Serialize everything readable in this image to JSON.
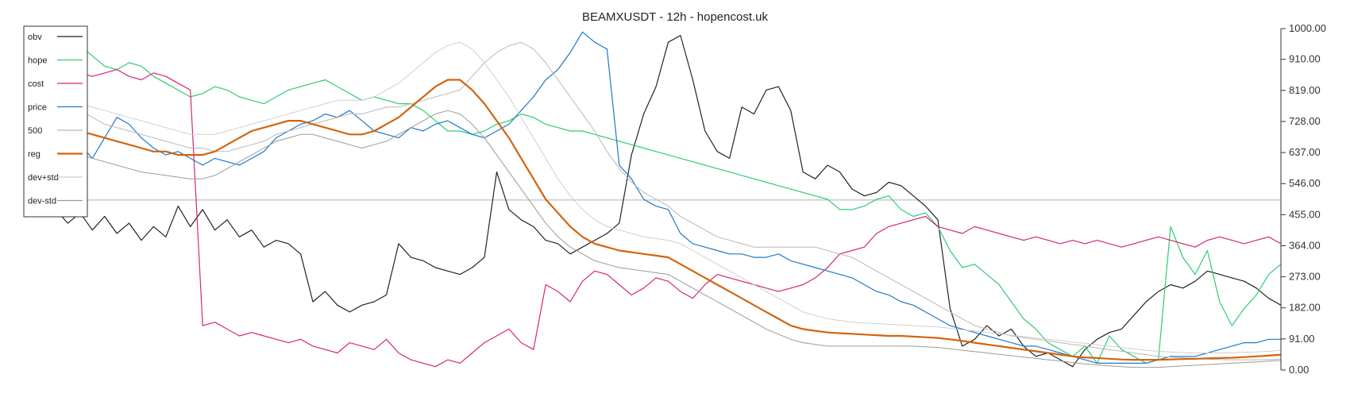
{
  "chart_data": {
    "type": "line",
    "title": "BEAMXUSDT - 12h - hopencost.uk",
    "xlabel": "",
    "ylabel": "",
    "ylim": [
      0,
      1000
    ],
    "yticks": [
      "1000.00",
      "910.00",
      "819.00",
      "728.00",
      "637.00",
      "546.00",
      "455.00",
      "364.00",
      "273.00",
      "182.00",
      "91.00",
      "0.00"
    ],
    "ytick_values": [
      1000,
      910,
      819,
      728,
      637,
      546,
      455,
      364,
      273,
      182,
      91,
      0
    ],
    "axis_side": "right",
    "grid": false,
    "horizontal_line": 498,
    "legend_position": "top-left",
    "x": [
      0,
      4,
      8,
      12,
      16,
      20,
      24,
      28,
      32,
      36,
      40,
      44,
      48,
      52,
      56,
      60,
      64,
      68,
      72,
      76,
      80,
      84,
      88,
      92,
      96,
      100,
      104,
      108,
      112,
      116,
      120,
      124,
      128,
      132,
      136,
      140,
      144,
      148,
      152,
      156,
      160,
      164,
      168,
      172,
      176,
      180,
      184,
      188,
      192,
      196,
      200,
      204,
      208,
      212,
      216,
      220,
      224,
      228,
      232,
      236,
      240,
      244,
      248,
      252,
      256,
      260,
      264,
      268,
      272,
      276,
      280,
      284,
      288,
      292,
      296,
      300,
      304,
      308,
      312,
      316,
      320,
      324,
      328,
      332,
      336,
      340,
      344,
      348,
      352,
      356,
      360,
      364,
      368,
      372,
      376,
      380,
      384,
      388,
      392,
      396,
      400
    ],
    "series": [
      {
        "name": "obv",
        "color": "#222222",
        "width": 1.2,
        "values": [
          470,
          430,
          460,
          410,
          450,
          400,
          430,
          380,
          420,
          390,
          480,
          420,
          470,
          410,
          440,
          390,
          410,
          360,
          380,
          370,
          340,
          200,
          230,
          190,
          170,
          190,
          200,
          220,
          370,
          330,
          320,
          300,
          290,
          280,
          300,
          330,
          580,
          470,
          440,
          420,
          380,
          370,
          340,
          360,
          380,
          400,
          430,
          630,
          750,
          830,
          960,
          980,
          850,
          700,
          640,
          620,
          770,
          750,
          820,
          830,
          760,
          580,
          560,
          600,
          580,
          530,
          510,
          520,
          550,
          540,
          510,
          480,
          440,
          180,
          70,
          90,
          130,
          100,
          120,
          70,
          40,
          50,
          30,
          10,
          60,
          90,
          110,
          120,
          160,
          200,
          230,
          250,
          240,
          260,
          290,
          280,
          270,
          260,
          240,
          210,
          190
        ]
      },
      {
        "name": "hope",
        "color": "#2ecc71",
        "width": 1.2,
        "values": [
          960,
          980,
          950,
          920,
          890,
          880,
          900,
          890,
          860,
          840,
          820,
          800,
          810,
          830,
          820,
          800,
          790,
          780,
          800,
          820,
          830,
          840,
          850,
          830,
          810,
          790,
          800,
          790,
          780,
          780,
          760,
          730,
          700,
          700,
          690,
          700,
          720,
          730,
          750,
          740,
          720,
          710,
          700,
          700,
          690,
          680,
          670,
          660,
          650,
          640,
          630,
          620,
          610,
          600,
          590,
          580,
          570,
          560,
          550,
          540,
          530,
          520,
          510,
          500,
          470,
          470,
          480,
          500,
          510,
          470,
          450,
          460,
          420,
          350,
          300,
          310,
          280,
          250,
          200,
          150,
          120,
          80,
          60,
          40,
          70,
          20,
          100,
          60,
          40,
          20,
          30,
          420,
          330,
          280,
          350,
          200,
          130,
          180,
          220,
          280,
          310
        ]
      },
      {
        "name": "cost",
        "color": "#d6247a",
        "width": 1.2,
        "values": [
          900,
          880,
          870,
          860,
          870,
          880,
          860,
          850,
          870,
          860,
          840,
          820,
          130,
          140,
          120,
          100,
          110,
          100,
          90,
          80,
          90,
          70,
          60,
          50,
          80,
          70,
          60,
          90,
          50,
          30,
          20,
          10,
          30,
          20,
          50,
          80,
          100,
          120,
          80,
          60,
          250,
          230,
          200,
          260,
          290,
          280,
          250,
          220,
          240,
          270,
          260,
          230,
          210,
          250,
          280,
          270,
          260,
          250,
          240,
          230,
          240,
          250,
          270,
          300,
          340,
          350,
          360,
          400,
          420,
          430,
          440,
          450,
          420,
          410,
          400,
          420,
          410,
          400,
          390,
          380,
          390,
          380,
          370,
          380,
          370,
          380,
          370,
          360,
          370,
          380,
          390,
          380,
          370,
          360,
          380,
          390,
          380,
          370,
          380,
          390,
          370
        ]
      },
      {
        "name": "price",
        "color": "#1f78c8",
        "width": 1.2,
        "values": [
          640,
          700,
          660,
          620,
          680,
          740,
          720,
          680,
          650,
          630,
          640,
          620,
          600,
          620,
          610,
          600,
          620,
          640,
          680,
          700,
          720,
          730,
          750,
          740,
          760,
          730,
          700,
          690,
          680,
          710,
          700,
          720,
          730,
          710,
          690,
          680,
          700,
          720,
          760,
          800,
          850,
          880,
          930,
          990,
          960,
          940,
          600,
          560,
          500,
          480,
          470,
          400,
          370,
          360,
          350,
          340,
          340,
          330,
          330,
          340,
          320,
          310,
          300,
          290,
          280,
          270,
          250,
          230,
          220,
          200,
          190,
          170,
          150,
          130,
          120,
          110,
          100,
          90,
          80,
          70,
          70,
          60,
          50,
          40,
          30,
          20,
          20,
          20,
          20,
          20,
          30,
          40,
          40,
          40,
          50,
          60,
          70,
          80,
          80,
          90,
          90
        ]
      },
      {
        "name": "500",
        "color": "#b8b8b8",
        "width": 1.0,
        "values": [
          790,
          770,
          760,
          740,
          720,
          710,
          700,
          690,
          680,
          670,
          660,
          650,
          650,
          640,
          640,
          650,
          660,
          670,
          690,
          700,
          710,
          720,
          730,
          740,
          750,
          750,
          760,
          770,
          770,
          780,
          790,
          800,
          810,
          820,
          860,
          900,
          930,
          950,
          960,
          940,
          900,
          850,
          800,
          750,
          700,
          640,
          590,
          550,
          520,
          500,
          480,
          450,
          430,
          410,
          390,
          380,
          370,
          360,
          360,
          360,
          360,
          360,
          360,
          350,
          340,
          330,
          310,
          290,
          270,
          250,
          230,
          210,
          190,
          170,
          150,
          130,
          120,
          110,
          100,
          95,
          90,
          85,
          80,
          75,
          70,
          65,
          60,
          55,
          50,
          45,
          40,
          38,
          36,
          34,
          32,
          31,
          30,
          30,
          30,
          31,
          32
        ]
      },
      {
        "name": "reg",
        "color": "#d2640f",
        "width": 2.2,
        "values": [
          730,
          710,
          700,
          690,
          680,
          670,
          660,
          650,
          640,
          640,
          630,
          630,
          630,
          640,
          660,
          680,
          700,
          710,
          720,
          730,
          730,
          720,
          710,
          700,
          690,
          690,
          700,
          720,
          740,
          770,
          800,
          830,
          850,
          850,
          820,
          780,
          730,
          680,
          620,
          560,
          500,
          460,
          420,
          390,
          370,
          360,
          350,
          345,
          340,
          335,
          330,
          310,
          290,
          270,
          250,
          230,
          210,
          190,
          170,
          150,
          130,
          120,
          115,
          110,
          108,
          106,
          104,
          102,
          100,
          100,
          98,
          96,
          94,
          90,
          85,
          80,
          75,
          70,
          65,
          60,
          55,
          50,
          45,
          40,
          37,
          35,
          33,
          31,
          30,
          30,
          30,
          31,
          32,
          33,
          34,
          35,
          36,
          38,
          40,
          42,
          45
        ]
      },
      {
        "name": "dev+std",
        "color": "#cfcfcf",
        "width": 1.0,
        "values": [
          800,
          790,
          780,
          770,
          760,
          750,
          740,
          730,
          720,
          710,
          700,
          690,
          690,
          690,
          700,
          710,
          720,
          730,
          740,
          750,
          760,
          770,
          780,
          790,
          790,
          790,
          800,
          820,
          840,
          870,
          900,
          930,
          950,
          960,
          940,
          900,
          850,
          800,
          740,
          680,
          620,
          560,
          510,
          470,
          440,
          420,
          410,
          400,
          390,
          385,
          380,
          370,
          350,
          330,
          310,
          290,
          270,
          250,
          230,
          210,
          190,
          170,
          160,
          150,
          145,
          140,
          138,
          136,
          134,
          132,
          130,
          128,
          126,
          122,
          118,
          114,
          110,
          106,
          102,
          98,
          94,
          90,
          86,
          82,
          78,
          74,
          70,
          66,
          62,
          58,
          55,
          53,
          51,
          50,
          50,
          50,
          51,
          52,
          53,
          55,
          58
        ]
      },
      {
        "name": "dev-std",
        "color": "#9a9a9a",
        "width": 1.0,
        "values": [
          660,
          640,
          630,
          620,
          610,
          600,
          590,
          580,
          575,
          570,
          565,
          560,
          560,
          570,
          590,
          610,
          630,
          650,
          670,
          680,
          690,
          690,
          680,
          670,
          660,
          650,
          660,
          670,
          690,
          710,
          730,
          750,
          760,
          750,
          720,
          680,
          630,
          580,
          530,
          480,
          430,
          390,
          360,
          340,
          320,
          310,
          300,
          295,
          290,
          285,
          280,
          260,
          240,
          220,
          200,
          180,
          160,
          140,
          120,
          105,
          90,
          80,
          75,
          70,
          70,
          70,
          70,
          70,
          70,
          70,
          70,
          68,
          66,
          62,
          58,
          54,
          50,
          46,
          42,
          38,
          34,
          30,
          26,
          22,
          18,
          15,
          12,
          10,
          8,
          8,
          8,
          10,
          12,
          14,
          16,
          18,
          20,
          22,
          24,
          26,
          28
        ]
      }
    ]
  }
}
